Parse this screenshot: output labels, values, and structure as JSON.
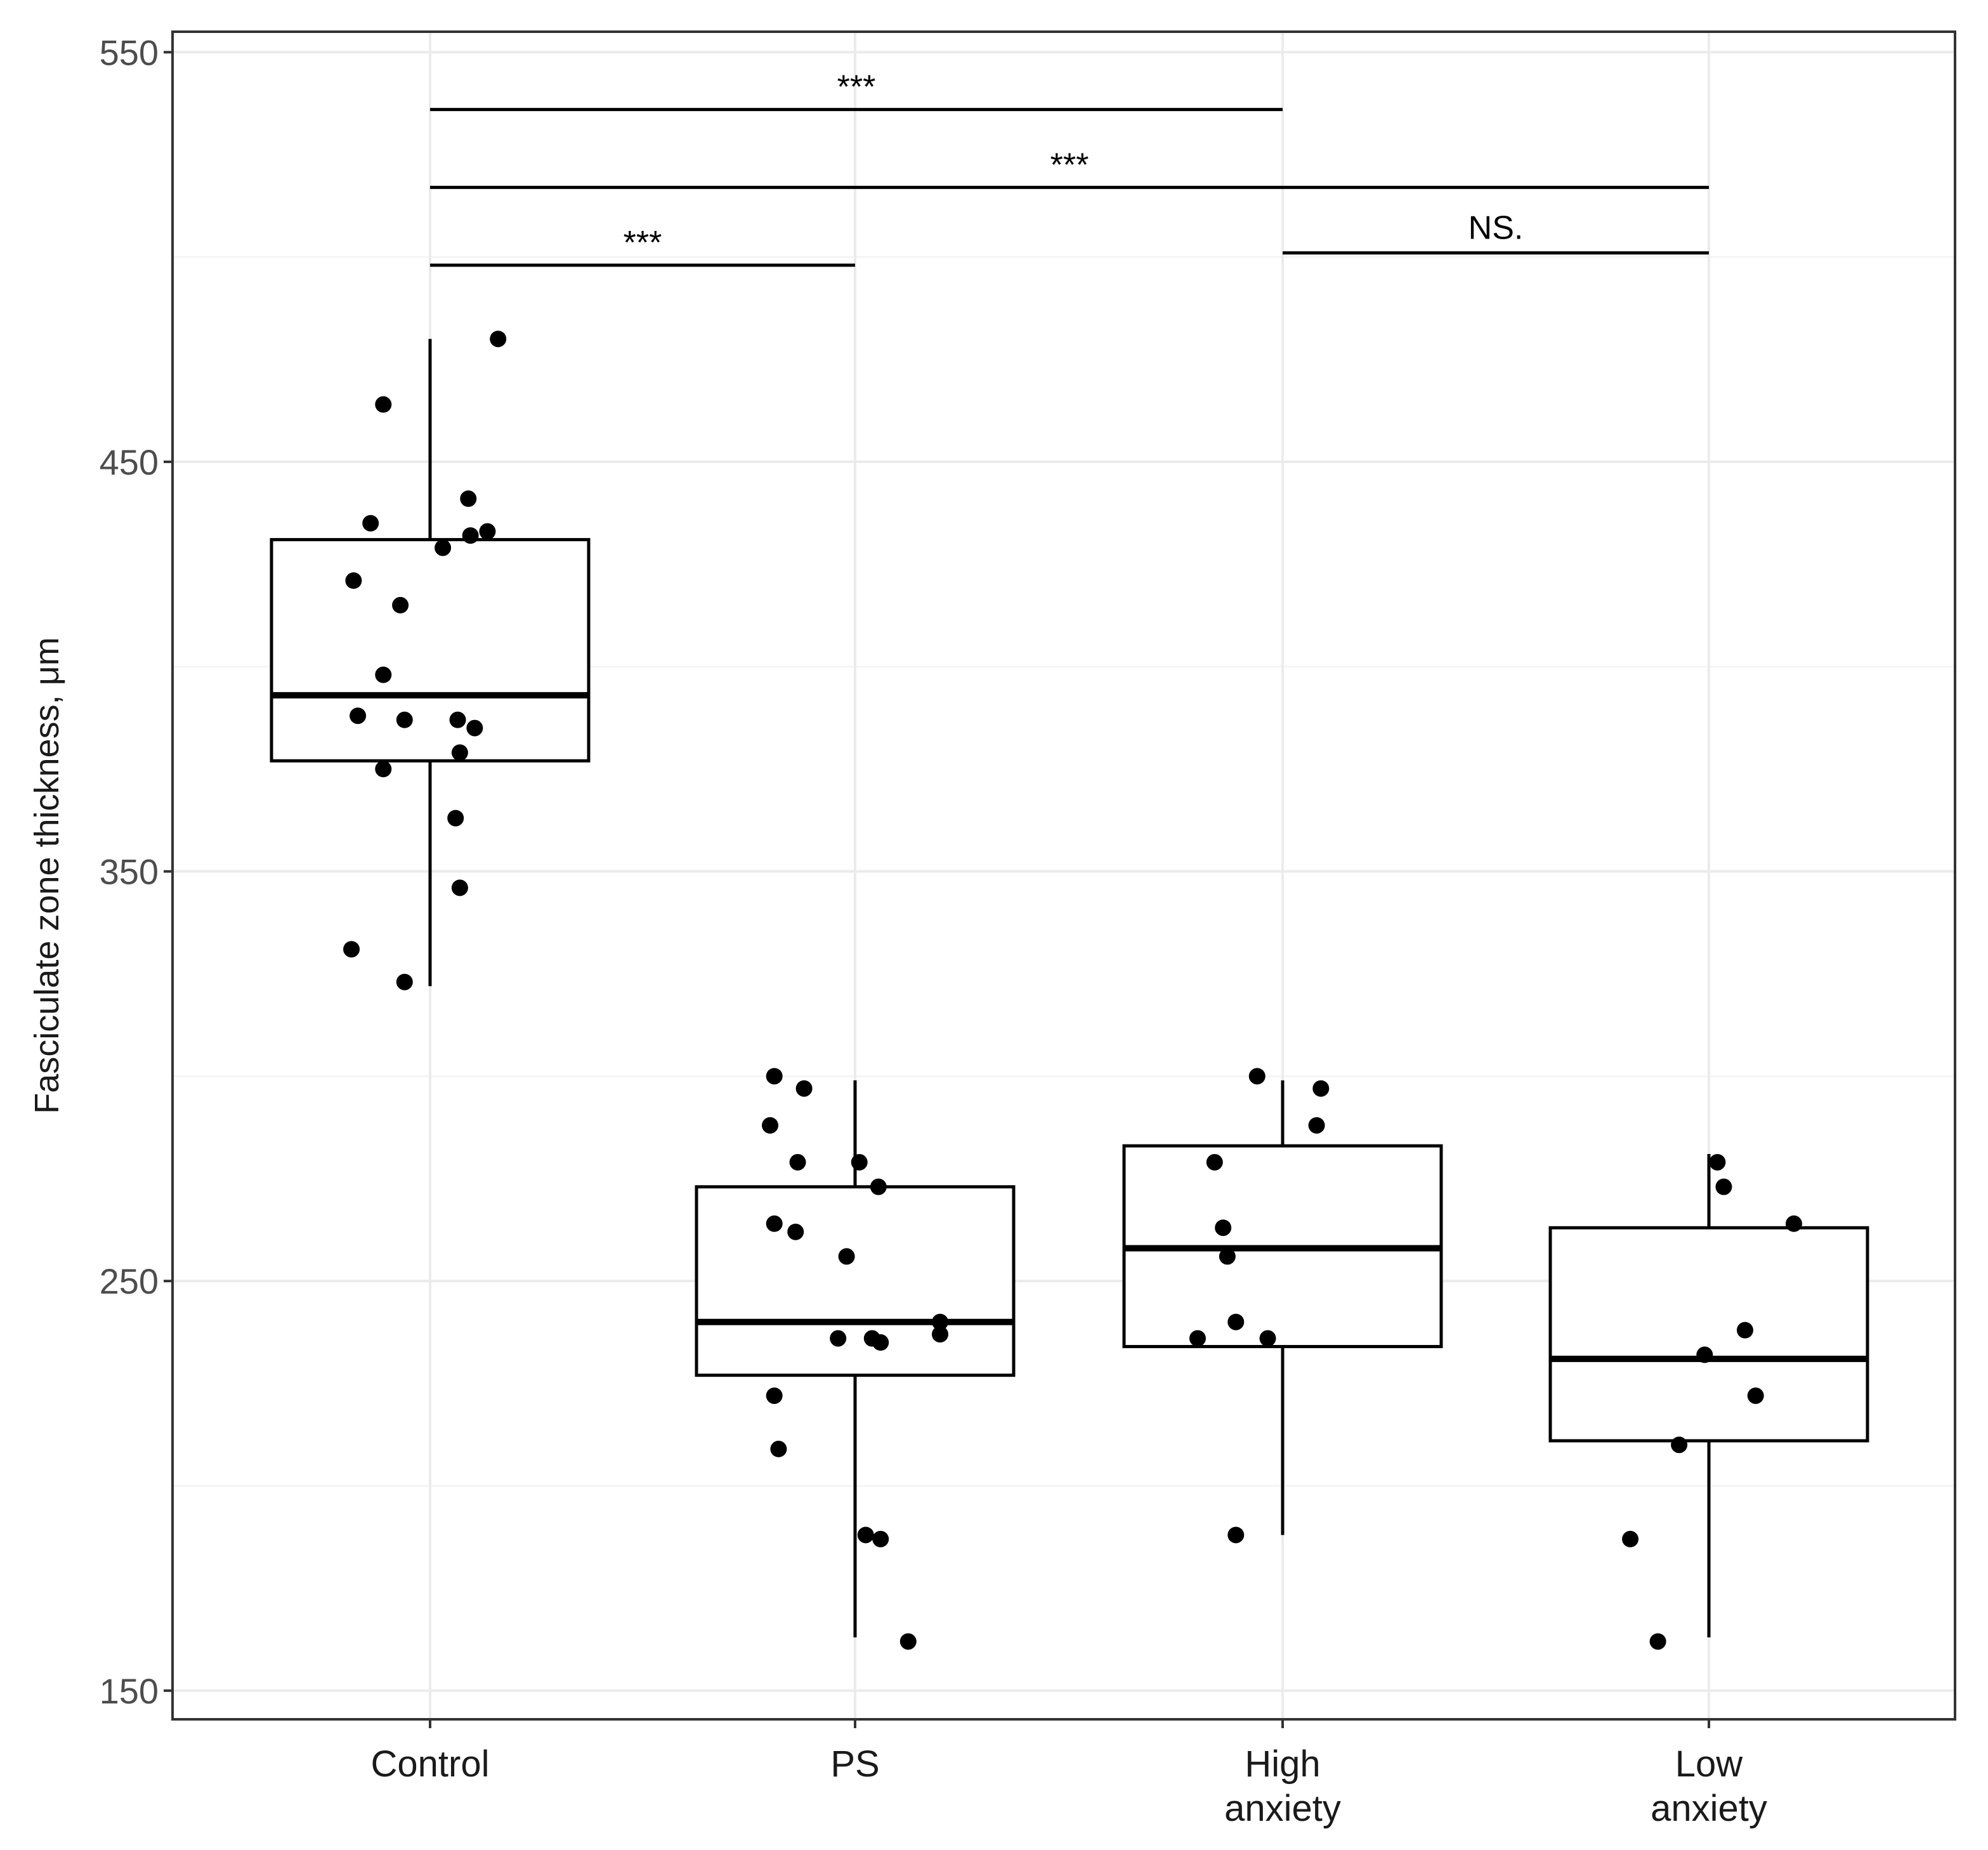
{
  "chart_data": {
    "type": "boxplot",
    "ylabel": "Fasciculate zone thickness, μm",
    "xlabel": "",
    "ylim": [
      143,
      555
    ],
    "yticks": [
      150,
      250,
      350,
      450,
      550
    ],
    "ytick_labels": [
      "150",
      "250",
      "350",
      "450",
      "550"
    ],
    "categories": [
      {
        "id": "control",
        "lines": [
          "Control"
        ]
      },
      {
        "id": "ps",
        "lines": [
          "PS"
        ]
      },
      {
        "id": "high-anxiety",
        "lines": [
          "High",
          "anxiety"
        ]
      },
      {
        "id": "low-anxiety",
        "lines": [
          "Low",
          "anxiety"
        ]
      }
    ],
    "boxes": [
      {
        "group": "Control",
        "whisker_low": 322,
        "q1": 377,
        "median": 393,
        "q3": 431,
        "whisker_high": 480
      },
      {
        "group": "PS",
        "whisker_low": 163,
        "q1": 227,
        "median": 240,
        "q3": 273,
        "whisker_high": 299
      },
      {
        "group": "High anxiety",
        "whisker_low": 188,
        "q1": 234,
        "median": 258,
        "q3": 283,
        "whisker_high": 299
      },
      {
        "group": "Low anxiety",
        "whisker_low": 163,
        "q1": 211,
        "median": 231,
        "q3": 263,
        "whisker_high": 281
      }
    ],
    "points": [
      {
        "group": 0,
        "offset": 0.16,
        "y": 480
      },
      {
        "group": 0,
        "offset": -0.11,
        "y": 464
      },
      {
        "group": 0,
        "offset": 0.09,
        "y": 441
      },
      {
        "group": 0,
        "offset": -0.14,
        "y": 435
      },
      {
        "group": 0,
        "offset": 0.095,
        "y": 432
      },
      {
        "group": 0,
        "offset": 0.135,
        "y": 433
      },
      {
        "group": 0,
        "offset": 0.03,
        "y": 429
      },
      {
        "group": 0,
        "offset": -0.18,
        "y": 421
      },
      {
        "group": 0,
        "offset": -0.07,
        "y": 415
      },
      {
        "group": 0,
        "offset": -0.11,
        "y": 398
      },
      {
        "group": 0,
        "offset": -0.17,
        "y": 388
      },
      {
        "group": 0,
        "offset": -0.06,
        "y": 387
      },
      {
        "group": 0,
        "offset": 0.065,
        "y": 387
      },
      {
        "group": 0,
        "offset": 0.105,
        "y": 385
      },
      {
        "group": 0,
        "offset": 0.07,
        "y": 379
      },
      {
        "group": 0,
        "offset": -0.11,
        "y": 375
      },
      {
        "group": 0,
        "offset": 0.06,
        "y": 363
      },
      {
        "group": 0,
        "offset": 0.07,
        "y": 346
      },
      {
        "group": 0,
        "offset": -0.185,
        "y": 331
      },
      {
        "group": 0,
        "offset": -0.06,
        "y": 323
      },
      {
        "group": 1,
        "offset": -0.19,
        "y": 300
      },
      {
        "group": 1,
        "offset": -0.12,
        "y": 297
      },
      {
        "group": 1,
        "offset": -0.2,
        "y": 288
      },
      {
        "group": 1,
        "offset": -0.135,
        "y": 279
      },
      {
        "group": 1,
        "offset": 0.01,
        "y": 279
      },
      {
        "group": 1,
        "offset": 0.055,
        "y": 273
      },
      {
        "group": 1,
        "offset": -0.19,
        "y": 264
      },
      {
        "group": 1,
        "offset": -0.14,
        "y": 262
      },
      {
        "group": 1,
        "offset": -0.02,
        "y": 256
      },
      {
        "group": 1,
        "offset": 0.2,
        "y": 240
      },
      {
        "group": 1,
        "offset": 0.2,
        "y": 237
      },
      {
        "group": 1,
        "offset": -0.04,
        "y": 236
      },
      {
        "group": 1,
        "offset": 0.04,
        "y": 236
      },
      {
        "group": 1,
        "offset": 0.06,
        "y": 235
      },
      {
        "group": 1,
        "offset": -0.19,
        "y": 222
      },
      {
        "group": 1,
        "offset": -0.18,
        "y": 209
      },
      {
        "group": 1,
        "offset": 0.025,
        "y": 188
      },
      {
        "group": 1,
        "offset": 0.06,
        "y": 187
      },
      {
        "group": 1,
        "offset": 0.125,
        "y": 162
      },
      {
        "group": 2,
        "offset": -0.06,
        "y": 300
      },
      {
        "group": 2,
        "offset": 0.09,
        "y": 297
      },
      {
        "group": 2,
        "offset": 0.08,
        "y": 288
      },
      {
        "group": 2,
        "offset": -0.16,
        "y": 279
      },
      {
        "group": 2,
        "offset": -0.14,
        "y": 263
      },
      {
        "group": 2,
        "offset": -0.13,
        "y": 256
      },
      {
        "group": 2,
        "offset": -0.11,
        "y": 240
      },
      {
        "group": 2,
        "offset": -0.2,
        "y": 236
      },
      {
        "group": 2,
        "offset": -0.035,
        "y": 236
      },
      {
        "group": 2,
        "offset": -0.11,
        "y": 188
      },
      {
        "group": 3,
        "offset": 0.02,
        "y": 279
      },
      {
        "group": 3,
        "offset": 0.035,
        "y": 273
      },
      {
        "group": 3,
        "offset": 0.2,
        "y": 264
      },
      {
        "group": 3,
        "offset": 0.085,
        "y": 238
      },
      {
        "group": 3,
        "offset": -0.01,
        "y": 232
      },
      {
        "group": 3,
        "offset": 0.11,
        "y": 222
      },
      {
        "group": 3,
        "offset": -0.07,
        "y": 210
      },
      {
        "group": 3,
        "offset": -0.185,
        "y": 187
      },
      {
        "group": 3,
        "offset": -0.12,
        "y": 162
      }
    ],
    "significance": [
      {
        "from": 0,
        "to": 2,
        "y": 536,
        "label": "***"
      },
      {
        "from": 0,
        "to": 3,
        "y": 517,
        "label": "***"
      },
      {
        "from": 0,
        "to": 1,
        "y": 498,
        "label": "***"
      },
      {
        "from": 2,
        "to": 3,
        "y": 501,
        "label": "NS."
      }
    ]
  }
}
